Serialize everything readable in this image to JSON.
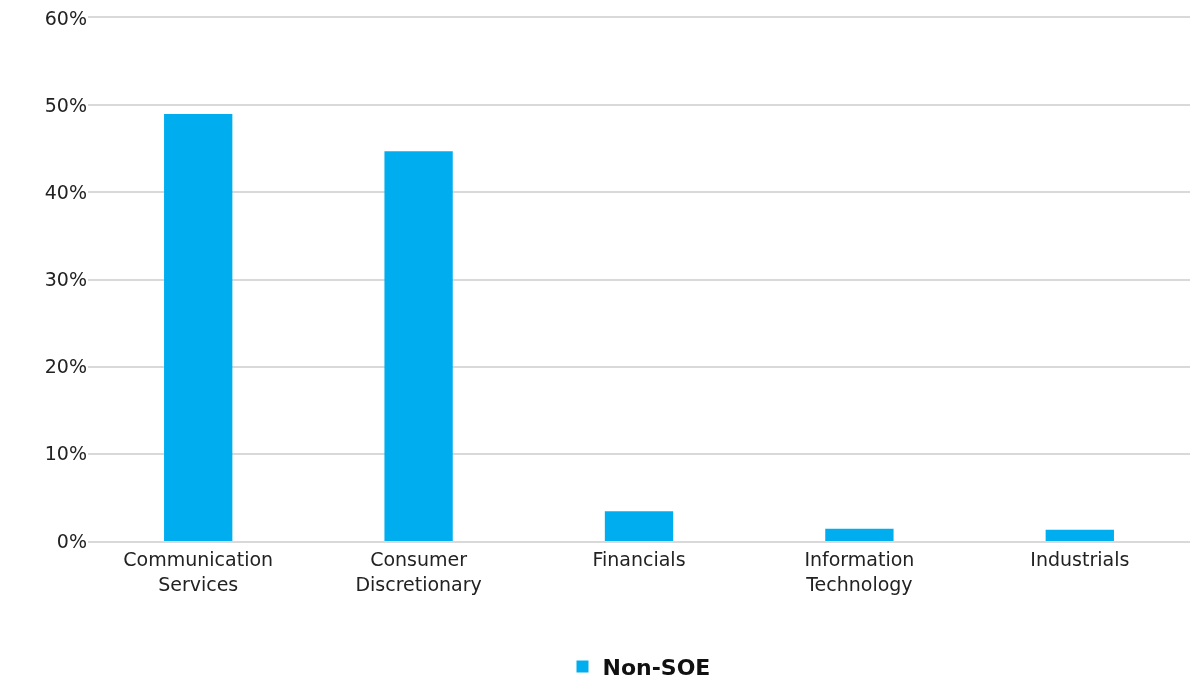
{
  "chart_data": {
    "type": "bar",
    "categories": [
      "Communication Services",
      "Consumer Discretionary",
      "Financials",
      "Information Technology",
      "Industrials"
    ],
    "series": [
      {
        "name": "Non-SOE",
        "color": "#00aeef",
        "values": [
          49.0,
          44.7,
          3.4,
          1.4,
          1.3
        ]
      }
    ],
    "ylim": [
      0,
      60
    ],
    "yticks": [
      {
        "value": 0,
        "label": "0%"
      },
      {
        "value": 10,
        "label": "10%"
      },
      {
        "value": 20,
        "label": "20%"
      },
      {
        "value": 30,
        "label": "30%"
      },
      {
        "value": 40,
        "label": "40%"
      },
      {
        "value": 50,
        "label": "50%"
      },
      {
        "value": 60,
        "label": "60%"
      }
    ],
    "grid": "y",
    "legend": "bottom"
  }
}
